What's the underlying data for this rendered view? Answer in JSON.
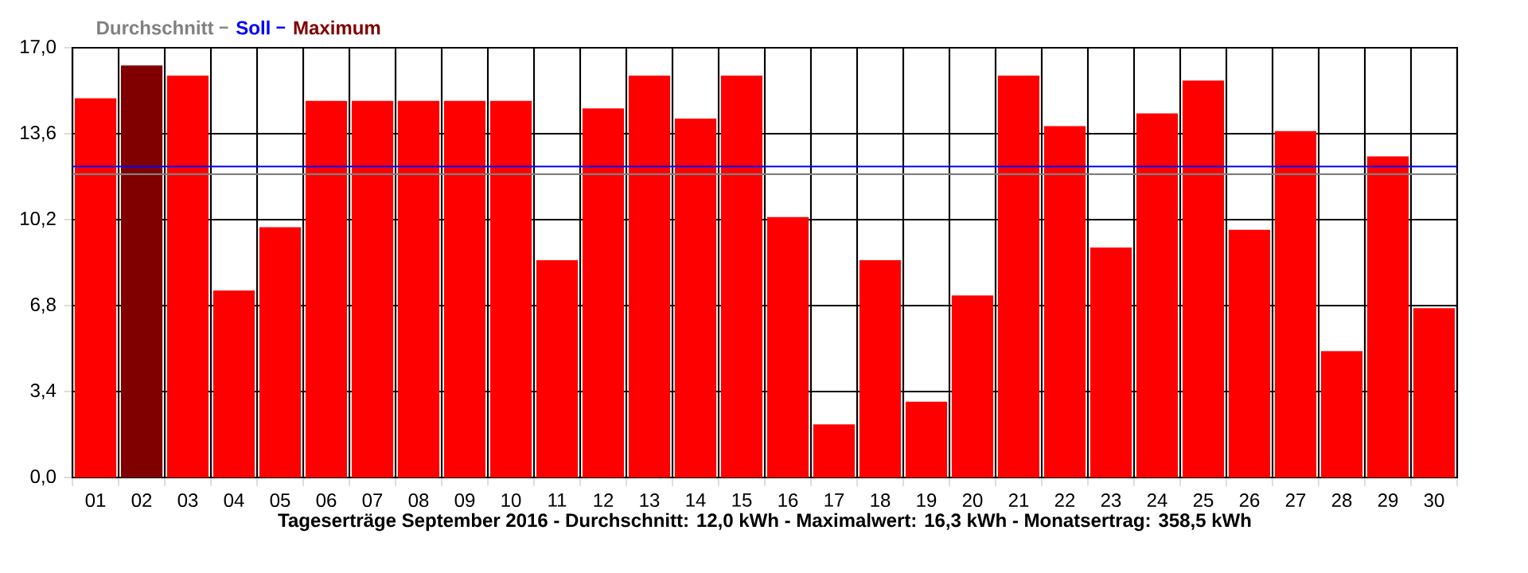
{
  "chart_data": {
    "type": "bar",
    "xlabel": "Tageserträge September 2016 - Durchschnitt: 12,0 kWh - Maximalwert: 16,3 kWh - Monatsertrag: 358,5 kWh",
    "categories": [
      "01",
      "02",
      "03",
      "04",
      "05",
      "06",
      "07",
      "08",
      "09",
      "10",
      "11",
      "12",
      "13",
      "14",
      "15",
      "16",
      "17",
      "18",
      "19",
      "20",
      "21",
      "22",
      "23",
      "24",
      "25",
      "26",
      "27",
      "28",
      "29",
      "30"
    ],
    "values": [
      15.0,
      16.3,
      15.9,
      7.4,
      9.9,
      14.9,
      14.9,
      14.9,
      14.9,
      14.9,
      8.6,
      14.6,
      15.9,
      14.2,
      15.9,
      10.3,
      2.1,
      8.6,
      3.0,
      7.2,
      15.9,
      13.9,
      9.1,
      14.4,
      15.7,
      9.8,
      13.7,
      5.0,
      12.7,
      6.7
    ],
    "colors": [
      "#ff0000",
      "#800000",
      "#ff0000",
      "#ff0000",
      "#ff0000",
      "#ff0000",
      "#ff0000",
      "#ff0000",
      "#ff0000",
      "#ff0000",
      "#ff0000",
      "#ff0000",
      "#ff0000",
      "#ff0000",
      "#ff0000",
      "#ff0000",
      "#ff0000",
      "#ff0000",
      "#ff0000",
      "#ff0000",
      "#ff0000",
      "#ff0000",
      "#ff0000",
      "#ff0000",
      "#ff0000",
      "#ff0000",
      "#ff0000",
      "#ff0000",
      "#ff0000",
      "#ff0000"
    ],
    "ylim": [
      0,
      17
    ],
    "yticks": [
      {
        "value": 0,
        "label": "0,0"
      },
      {
        "value": 3.4,
        "label": "3,4"
      },
      {
        "value": 6.8,
        "label": "6,8"
      },
      {
        "value": 10.2,
        "label": "10,2"
      },
      {
        "value": 13.6,
        "label": "13,6"
      },
      {
        "value": 17,
        "label": "17,0"
      }
    ],
    "grid": true,
    "ref_lines": [
      {
        "axis": "y",
        "value": 12.0,
        "label": "Durchschnitt",
        "color": "#808080"
      },
      {
        "axis": "y",
        "value": 12.3,
        "label": "Soll",
        "color": "#0000ff"
      }
    ],
    "annotations": [
      "Maximum"
    ],
    "legend": "top left"
  }
}
